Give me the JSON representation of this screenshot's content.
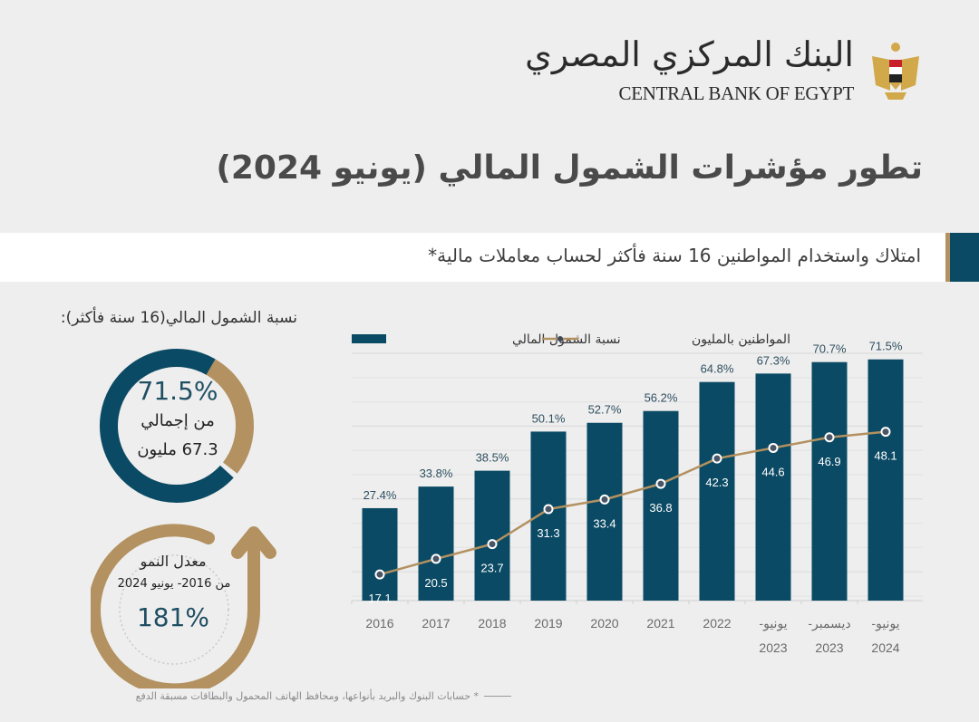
{
  "header": {
    "logo_arabic": "البنك المركزي المصري",
    "logo_english": "CENTRAL BANK OF EGYPT",
    "emblem_icon": "egypt-eagle-emblem-icon"
  },
  "title": "تطور مؤشرات الشمول المالي (يونيو 2024)",
  "section_banner": "امتلاك واستخدام المواطنين 16 سنة فأكثر لحساب معاملات مالية*",
  "donut": {
    "heading": "نسبة الشمول المالي(16 سنة فأكثر):",
    "percent_label": "71.5%",
    "percent_value": 71.5,
    "line1": "من إجمالي",
    "line2": "67.3 مليون",
    "colors": {
      "filled": "#0b4a64",
      "remainder": "#b39160"
    }
  },
  "growth": {
    "title": "معدل النمو",
    "range": "من 2016- يونيو 2024",
    "value": "181%"
  },
  "chart_data": {
    "type": "bar",
    "title": "",
    "xlabel": "",
    "ylabel": "",
    "grid": true,
    "legend": {
      "placement": "top",
      "entries": [
        {
          "name": "نسبة الشمول المالي",
          "kind": "bar",
          "color": "#0b4a64"
        },
        {
          "name": "المواطنين بالمليون",
          "kind": "line",
          "color": "#b39160"
        }
      ]
    },
    "categories": [
      [
        "2016"
      ],
      [
        "2017"
      ],
      [
        "2018"
      ],
      [
        "2019"
      ],
      [
        "2020"
      ],
      [
        "2021"
      ],
      [
        "2022"
      ],
      [
        "يونيو-",
        "2023"
      ],
      [
        "ديسمبر-",
        "2023"
      ],
      [
        "يونيو-",
        "2024"
      ]
    ],
    "series": [
      {
        "name": "نسبة الشمول المالي",
        "type": "bar",
        "unit": "%",
        "values": [
          27.4,
          33.8,
          38.5,
          50.1,
          52.7,
          56.2,
          64.8,
          67.3,
          70.7,
          71.5
        ],
        "labels": [
          "27.4%",
          "33.8%",
          "38.5%",
          "50.1%",
          "52.7%",
          "56.2%",
          "64.8%",
          "67.3%",
          "70.7%",
          "71.5%"
        ]
      },
      {
        "name": "المواطنين بالمليون",
        "type": "line",
        "unit": "million",
        "values": [
          17.1,
          20.5,
          23.7,
          31.3,
          33.4,
          36.8,
          42.3,
          44.6,
          46.9,
          48.1
        ],
        "labels": [
          "17.1",
          "20.5",
          "23.7",
          "31.3",
          "33.4",
          "36.8",
          "42.3",
          "44.6",
          "46.9",
          "48.1"
        ]
      }
    ],
    "ylim": [
      0,
      75
    ],
    "line_ylim": [
      0,
      100
    ]
  },
  "footnote": "* حسابات البنوك والبريد بأنواعها، ومحافظ الهاتف المحمول والبطاقات مسبقة الدفع"
}
